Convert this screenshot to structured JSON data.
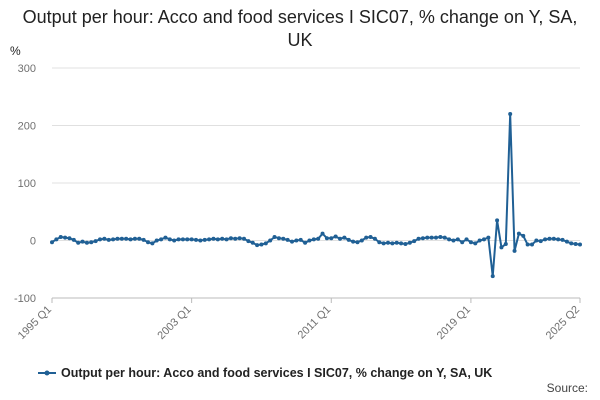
{
  "chart_data": {
    "type": "line",
    "title": "Output per hour: Acco and food services I SIC07, % change on Y, SA, UK",
    "y_label": "%",
    "source": "Source:",
    "categories": [
      "1995 Q1",
      null,
      null,
      null,
      null,
      null,
      null,
      null,
      null,
      null,
      null,
      null,
      null,
      null,
      null,
      null,
      null,
      null,
      null,
      null,
      null,
      null,
      null,
      null,
      null,
      null,
      null,
      null,
      null,
      null,
      null,
      null,
      "2003 Q1",
      null,
      null,
      null,
      null,
      null,
      null,
      null,
      null,
      null,
      null,
      null,
      null,
      null,
      null,
      null,
      null,
      null,
      null,
      null,
      null,
      null,
      null,
      null,
      null,
      null,
      null,
      null,
      null,
      null,
      null,
      null,
      "2011 Q1",
      null,
      null,
      null,
      null,
      null,
      null,
      null,
      null,
      null,
      null,
      null,
      null,
      null,
      null,
      null,
      null,
      null,
      null,
      null,
      null,
      null,
      null,
      null,
      null,
      null,
      null,
      null,
      null,
      null,
      null,
      null,
      "2019 Q1",
      null,
      null,
      null,
      null,
      null,
      null,
      null,
      null,
      null,
      null,
      null,
      null,
      null,
      null,
      null,
      null,
      null,
      null,
      null,
      null,
      null,
      null,
      null,
      null,
      "2025 Q2"
    ],
    "series": [
      {
        "name": "Output per hour: Acco and food services I SIC07, % change on Y, SA, UK",
        "color": "#206095",
        "values": [
          -3,
          2,
          6,
          5,
          4,
          1,
          -4,
          -2,
          -4,
          -3,
          -1,
          2,
          3,
          1,
          2,
          3,
          3,
          3,
          2,
          3,
          3,
          1,
          -3,
          -5,
          0,
          2,
          5,
          2,
          0,
          2,
          2,
          2,
          2,
          1,
          0,
          1,
          2,
          3,
          2,
          3,
          2,
          4,
          3,
          4,
          3,
          -1,
          -4,
          -8,
          -7,
          -5,
          0,
          6,
          4,
          3,
          1,
          -2,
          0,
          1,
          -4,
          0,
          2,
          3,
          12,
          4,
          4,
          7,
          3,
          5,
          1,
          -2,
          -3,
          0,
          5,
          6,
          3,
          -3,
          -5,
          -4,
          -5,
          -4,
          -5,
          -6,
          -4,
          -1,
          3,
          4,
          5,
          5,
          5,
          6,
          5,
          2,
          0,
          2,
          -3,
          2,
          -3,
          -5,
          0,
          2,
          5,
          -62,
          35,
          -12,
          -6,
          220,
          -18,
          12,
          8,
          -7,
          -7,
          0,
          -1,
          2,
          3,
          3,
          2,
          1,
          -2,
          -5,
          -6,
          -7
        ]
      }
    ],
    "ylim": [
      -100,
      300
    ],
    "yticks": [
      -100,
      0,
      100,
      200,
      300
    ],
    "grid": true,
    "legend": "bottom"
  }
}
